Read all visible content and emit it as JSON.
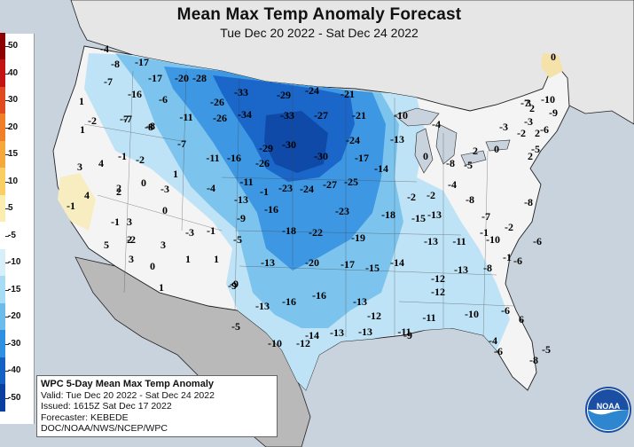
{
  "header": {
    "title": "Mean Max Temp Anomaly Forecast",
    "subtitle": "Tue Dec 20 2022 - Sat Dec 24 2022"
  },
  "legend": {
    "labels": [
      "50",
      "40",
      "30",
      "20",
      "15",
      "10",
      "5",
      "-5",
      "-10",
      "-15",
      "-20",
      "-30",
      "-40",
      "-50"
    ],
    "colors": [
      "#8b0000",
      "#c21414",
      "#e04a1f",
      "#f07f28",
      "#f6a83a",
      "#f9cf63",
      "#fbedb0",
      "#ffffff",
      "#d8effa",
      "#a7dcf4",
      "#6bbcea",
      "#2f8fe0",
      "#1461c4",
      "#0a3fa0"
    ]
  },
  "anomalies": [
    "-4",
    "-8",
    "-17",
    "-7",
    "-17",
    "-20",
    "-28",
    "-16",
    "-6",
    "-26",
    "-33",
    "-29",
    "-24",
    "-21",
    "-11",
    "-26",
    "-34",
    "-33",
    "-27",
    "-21",
    "-10",
    "-7",
    "-8",
    "-7",
    "-29",
    "-30",
    "-24",
    "-13",
    "-11",
    "-16",
    "-26",
    "-30",
    "-17",
    "-14",
    "-11",
    "-23",
    "-24",
    "-27",
    "-25",
    "-13",
    "-16",
    "-23",
    "-18",
    "-15",
    "-13",
    "-9",
    "-18",
    "-22",
    "-19",
    "-5",
    "-13",
    "-20",
    "-17",
    "-15",
    "-14",
    "-13",
    "-11",
    "-10",
    "-9",
    "-16",
    "-16",
    "-13",
    "-12",
    "-13",
    "-12",
    "-8",
    "-13",
    "-11",
    "-10",
    "-5",
    "-10",
    "-12",
    "-14",
    "-13",
    "-13",
    "-11",
    "-12",
    "-9",
    "1",
    "-7",
    "-8",
    "-2",
    "3",
    "4",
    "1",
    "-1",
    "-2",
    "2",
    "0",
    "4",
    "2",
    "-3",
    "-1",
    "3",
    "0",
    "3",
    "2",
    "5",
    "-1",
    "-2",
    "3",
    "0",
    "1",
    "1",
    "1",
    "-4",
    "1",
    "-3",
    "-1",
    "-1",
    "0",
    "-4",
    "-9",
    "-7",
    "-8",
    "-2",
    "-5",
    "-8",
    "-8",
    "-6",
    "-6",
    "-1",
    "-3",
    "0",
    "2",
    "2",
    "2",
    "-2",
    "-3",
    "-10",
    "-6",
    "-5",
    "-9",
    "-7",
    "-6",
    "-8",
    "-6",
    "-4",
    "-5",
    "-4",
    "-2",
    "-2",
    "-1",
    "6",
    "2",
    "0",
    "3"
  ],
  "info": {
    "line1": "WPC 5-Day Mean Max Temp Anomaly",
    "line2": "Valid: Tue Dec 20 2022 - Sat Dec 24 2022",
    "line3": "Issued: 1615Z Sat Dec 17 2022",
    "line4": "Forecaster: KEBEDE",
    "line5": "DOC/NOAA/NWS/NCEP/WPC"
  },
  "logo": {
    "text": "NOAA"
  },
  "colors": {
    "ocean": "#c9d3dd",
    "canada": "#e6e6e6",
    "mexico": "#b9b9b9",
    "land_base": "#f2f2f2"
  }
}
